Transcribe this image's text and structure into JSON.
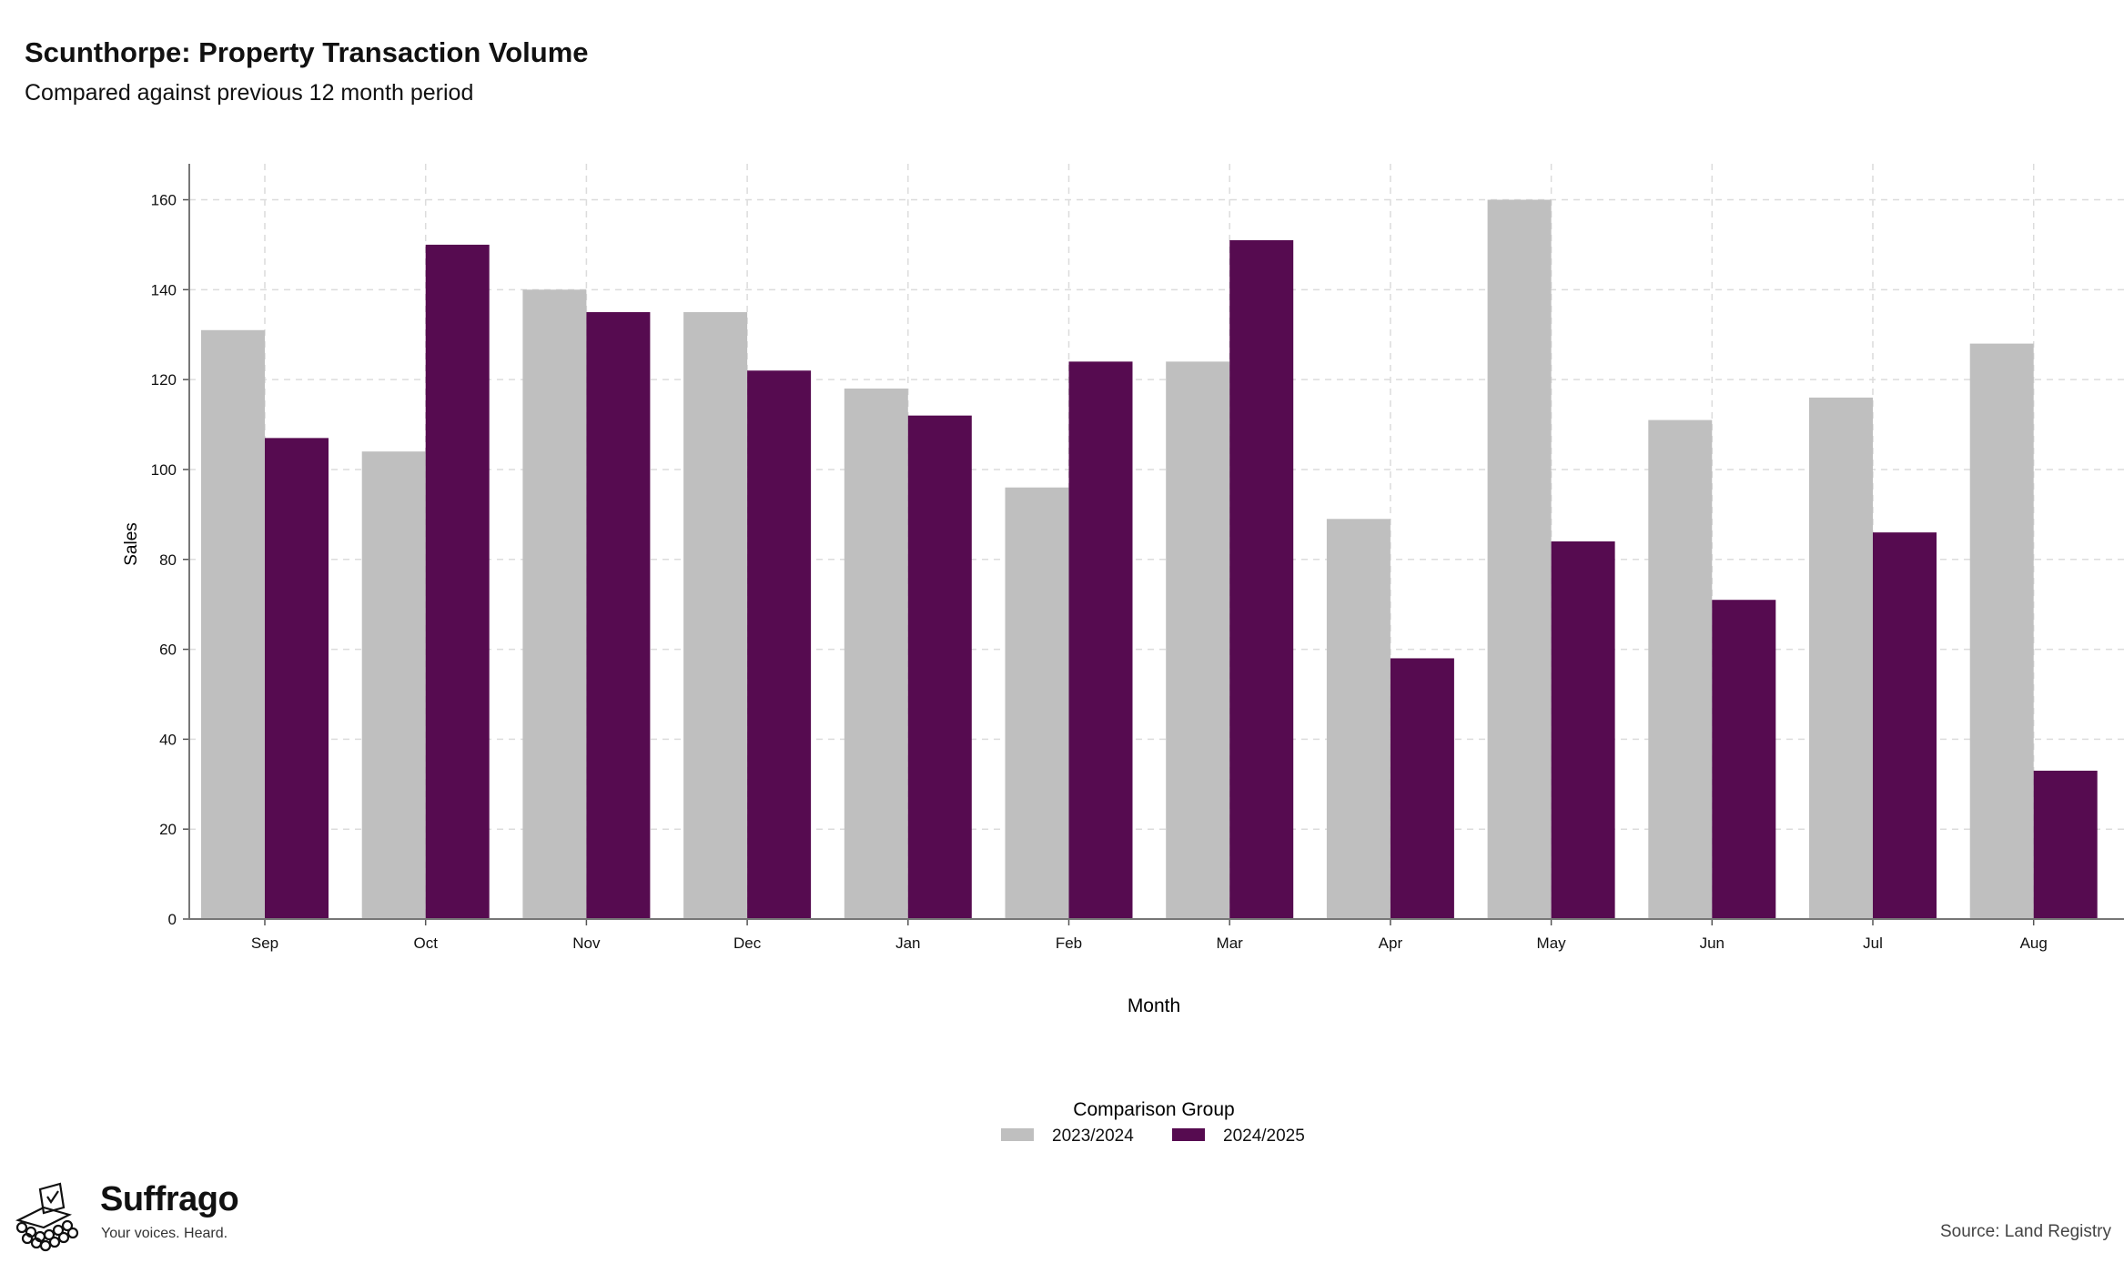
{
  "header": {
    "title": "Scunthorpe: Property Transaction Volume",
    "subtitle": "Compared against previous 12 month period"
  },
  "chart_data": {
    "type": "bar",
    "categories": [
      "Sep",
      "Oct",
      "Nov",
      "Dec",
      "Jan",
      "Feb",
      "Mar",
      "Apr",
      "May",
      "Jun",
      "Jul",
      "Aug"
    ],
    "series": [
      {
        "name": "2023/2024",
        "color": "#bfbfbf",
        "values": [
          131,
          104,
          140,
          135,
          118,
          96,
          124,
          89,
          160,
          111,
          116,
          128
        ]
      },
      {
        "name": "2024/2025",
        "color": "#560b50",
        "values": [
          107,
          150,
          135,
          122,
          112,
          124,
          151,
          58,
          84,
          71,
          86,
          33
        ]
      }
    ],
    "xlabel": "Month",
    "ylabel": "Sales",
    "ylim": [
      0,
      168
    ],
    "yticks": [
      0,
      20,
      40,
      60,
      80,
      100,
      120,
      140,
      160
    ],
    "grid": true,
    "legend": {
      "title": "Comparison Group",
      "position": "bottom-center"
    }
  },
  "footer": {
    "brand_name": "Suffrago",
    "brand_tagline": "Your voices. Heard.",
    "source": "Source: Land Registry"
  }
}
